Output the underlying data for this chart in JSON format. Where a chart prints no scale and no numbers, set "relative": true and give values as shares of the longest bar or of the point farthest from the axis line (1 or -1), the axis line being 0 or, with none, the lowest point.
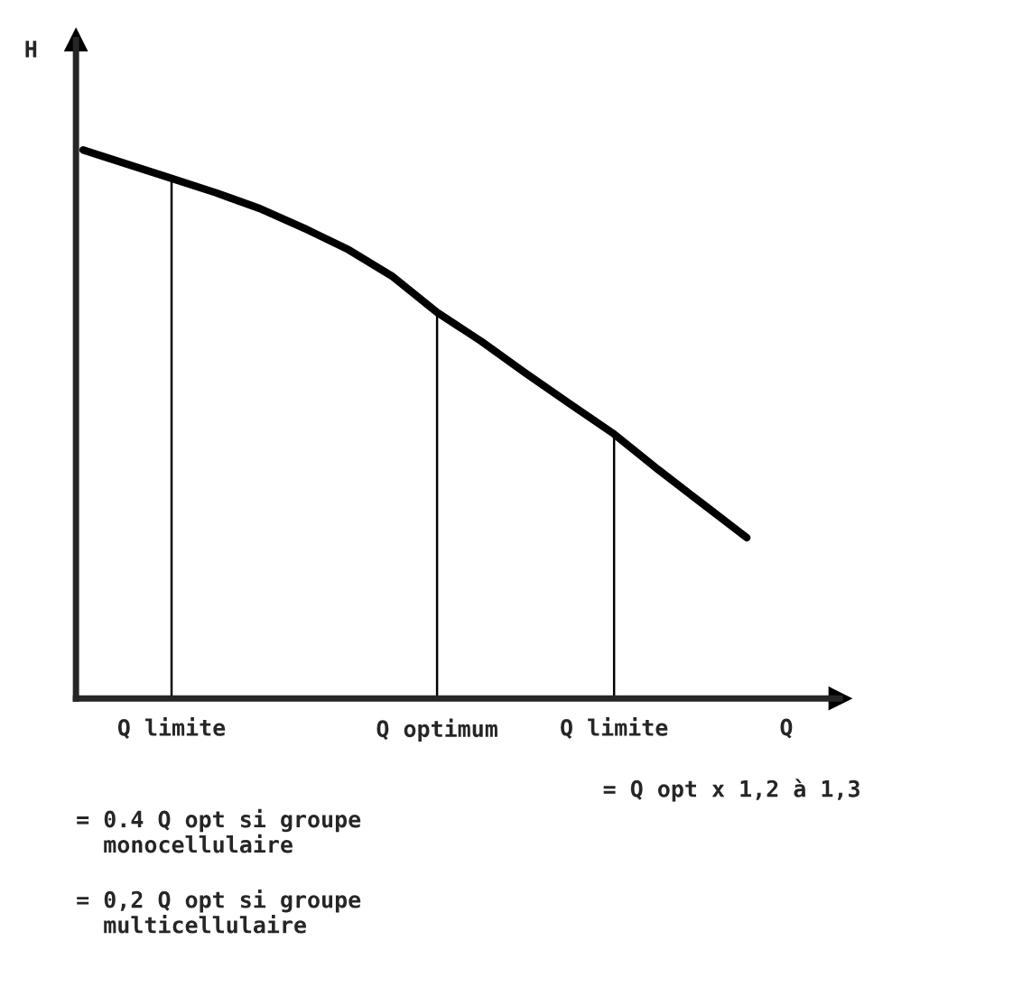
{
  "chart_data": {
    "type": "line",
    "relative": true,
    "xlabel": "Q",
    "ylabel": "H",
    "categories": [
      null,
      null,
      "Q limite",
      null,
      null,
      null,
      null,
      null,
      "Q optimum",
      null,
      null,
      null,
      "Q limite",
      null,
      null,
      null
    ],
    "series": [
      {
        "color": "#000000",
        "values": [
          1,
          0.974,
          0.948,
          0.922,
          0.893,
          0.857,
          0.818,
          0.769,
          0.704,
          0.651,
          0.593,
          0.537,
          0.482,
          0.417,
          0.355,
          0.293
        ]
      },
      {
        "type": "bar",
        "color": "#000000",
        "values": [
          null,
          null,
          0.948,
          null,
          null,
          null,
          null,
          null,
          0.704,
          null,
          null,
          null,
          0.482,
          null,
          null,
          null
        ]
      }
    ],
    "annotations": [
      "= Q opt x 1,2 à 1,3",
      "= 0.4 Q opt si groupe\n  monocellulaire",
      "= 0,2 Q opt si groupe\n  multicellulaire"
    ],
    "marker": "none",
    "line_style": "solid"
  }
}
